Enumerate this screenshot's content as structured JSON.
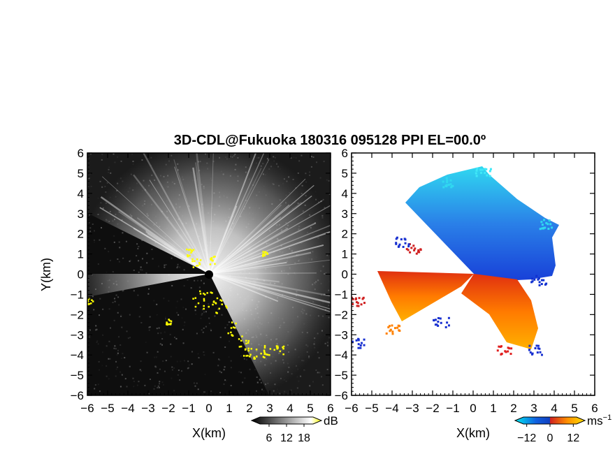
{
  "title": "3D-CDL@Fukuoka 180316 095128 PPI EL=00.0º",
  "chart_data": [
    {
      "type": "heatmap",
      "panel": "left",
      "quantity": "",
      "xlabel": "X(km)",
      "ylabel": "Y(km)",
      "xlim": [
        -6,
        6
      ],
      "ylim": [
        -6,
        6
      ],
      "xticks": [
        "−6",
        "−5",
        "−4",
        "−3",
        "−2",
        "−1",
        "0",
        "1",
        "2",
        "3",
        "4",
        "5",
        "6"
      ],
      "yticks": [
        "6",
        "5",
        "4",
        "3",
        "2",
        "1",
        "0",
        "−1",
        "−2",
        "−3",
        "−4",
        "−5",
        "−6"
      ],
      "colorbar": {
        "unit": "dB",
        "ticks": [
          "6",
          "12",
          "18"
        ],
        "range": [
          0,
          24
        ],
        "colors": [
          "#000000",
          "#ffffff",
          "#ffff00"
        ]
      },
      "background_color": "#101010"
    },
    {
      "type": "heatmap",
      "panel": "right",
      "quantity": "",
      "xlabel": "X(km)",
      "ylabel": "",
      "xlim": [
        -6,
        6
      ],
      "ylim": [
        -6,
        6
      ],
      "xticks": [
        "−6",
        "−5",
        "−4",
        "−3",
        "−2",
        "−1",
        "0",
        "1",
        "2",
        "3",
        "4",
        "5",
        "6"
      ],
      "yticks": [
        "6",
        "5",
        "4",
        "3",
        "2",
        "1",
        "0",
        "−1",
        "−2",
        "−3",
        "−4",
        "−5",
        "−6"
      ],
      "colorbar": {
        "unit": "ms",
        "unit_exp": "−1",
        "ticks": [
          "−12",
          "0",
          "12"
        ],
        "range": [
          -18,
          18
        ],
        "colors": [
          "#00e8f0",
          "#1060e0",
          "#d02020",
          "#ff9000",
          "#ffe000"
        ]
      },
      "background_color": "#ffffff"
    }
  ]
}
